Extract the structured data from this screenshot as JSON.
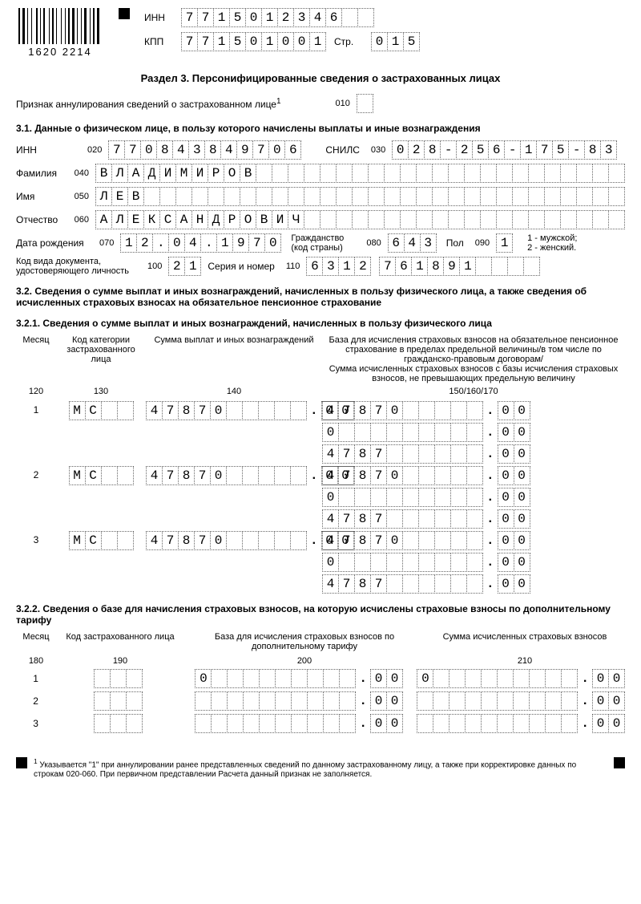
{
  "barcode_label": "1620 2214",
  "header": {
    "inn_label": "ИНН",
    "inn": [
      "7",
      "7",
      "1",
      "5",
      "0",
      "1",
      "2",
      "3",
      "4",
      "6",
      "",
      ""
    ],
    "kpp_label": "КПП",
    "kpp": [
      "7",
      "7",
      "1",
      "5",
      "0",
      "1",
      "0",
      "0",
      "1"
    ],
    "page_label": "Стр.",
    "page": [
      "0",
      "1",
      "5"
    ]
  },
  "section_title": "Раздел 3. Персонифицированные сведения о застрахованных лицах",
  "annul": {
    "label": "Признак аннулирования сведений о застрахованном лице",
    "sup": "1",
    "code": "010",
    "value": ""
  },
  "s31_title": "3.1. Данные о физическом лице, в пользу которого начислены выплаты и иные вознаграждения",
  "person": {
    "inn_label": "ИНН",
    "inn_code": "020",
    "inn": [
      "7",
      "7",
      "0",
      "8",
      "4",
      "3",
      "8",
      "4",
      "9",
      "7",
      "0",
      "6"
    ],
    "snils_label": "СНИЛС",
    "snils_code": "030",
    "snils": [
      "0",
      "2",
      "8",
      "-",
      "2",
      "5",
      "6",
      "-",
      "1",
      "7",
      "5",
      "-",
      "8",
      "3"
    ],
    "lastname_label": "Фамилия",
    "lastname_code": "040",
    "lastname": [
      "В",
      "Л",
      "А",
      "Д",
      "И",
      "М",
      "И",
      "Р",
      "О",
      "В",
      "",
      "",
      "",
      "",
      "",
      "",
      "",
      "",
      "",
      "",
      "",
      "",
      "",
      "",
      "",
      "",
      "",
      "",
      "",
      "",
      "",
      "",
      ""
    ],
    "firstname_label": "Имя",
    "firstname_code": "050",
    "firstname": [
      "Л",
      "Е",
      "В",
      "",
      "",
      "",
      "",
      "",
      "",
      "",
      "",
      "",
      "",
      "",
      "",
      "",
      "",
      "",
      "",
      "",
      "",
      "",
      "",
      "",
      "",
      "",
      "",
      "",
      "",
      "",
      "",
      "",
      ""
    ],
    "middlename_label": "Отчество",
    "middlename_code": "060",
    "middlename": [
      "А",
      "Л",
      "Е",
      "К",
      "С",
      "А",
      "Н",
      "Д",
      "Р",
      "О",
      "В",
      "И",
      "Ч",
      "",
      "",
      "",
      "",
      "",
      "",
      "",
      "",
      "",
      "",
      "",
      "",
      "",
      "",
      "",
      "",
      "",
      "",
      "",
      ""
    ],
    "dob_label": "Дата рождения",
    "dob_code": "070",
    "dob": [
      "1",
      "2",
      ".",
      "0",
      "4",
      ".",
      "1",
      "9",
      "7",
      "0"
    ],
    "citz_label": "Гражданство (код страны)",
    "citz_code": "080",
    "citz": [
      "6",
      "4",
      "3"
    ],
    "sex_label": "Пол",
    "sex_code": "090",
    "sex": [
      "1"
    ],
    "sex_note": "1 - мужской;\n2 - женский.",
    "doc_label": "Код вида документа, удостоверяющего личность",
    "doc_code": "100",
    "doc": [
      "2",
      "1"
    ],
    "docnum_label": "Серия и номер",
    "docnum_code": "110",
    "docnum_a": [
      "6",
      "3",
      "1",
      "2"
    ],
    "docnum_b": [
      "7",
      "6",
      "1",
      "8",
      "9",
      "1",
      "",
      "",
      "",
      ""
    ]
  },
  "s32_title": "3.2. Сведения о сумме выплат и иных вознаграждений, начисленных в пользу физического лица, а также сведения об исчисленных страховых взносах на обязательное пенсионное страхование",
  "s321_title": "3.2.1. Сведения о сумме выплат и иных вознаграждений, начисленных в пользу физического лица",
  "s321": {
    "h_month": "Месяц",
    "h_cat": "Код категории застрахованного лица",
    "h_sum": "Сумма выплат и иных вознаграждений",
    "h_base": "База для исчисления страховых взносов на обязательное пенсионное страхование в пределах предельной величины/в том числе по гражданско-правовым договорам/\nСумма исчисленных страховых взносов с базы исчисления страховых взносов, не превышающих предельную величину",
    "c_month": "120",
    "c_cat": "130",
    "c_sum": "140",
    "c_base": "150/160/170",
    "rows": [
      {
        "month": "1",
        "cat": [
          "М",
          "С",
          "",
          ""
        ],
        "sum_int": [
          "4",
          "7",
          "8",
          "7",
          "0",
          "",
          "",
          "",
          "",
          ""
        ],
        "sum_dec": [
          "0",
          "0"
        ],
        "lines": [
          {
            "int": [
              "4",
              "7",
              "8",
              "7",
              "0",
              "",
              "",
              "",
              "",
              ""
            ],
            "dec": [
              "0",
              "0"
            ]
          },
          {
            "int": [
              "0",
              "",
              "",
              "",
              "",
              "",
              "",
              "",
              "",
              ""
            ],
            "dec": [
              "0",
              "0"
            ]
          },
          {
            "int": [
              "4",
              "7",
              "8",
              "7",
              "",
              "",
              "",
              "",
              "",
              ""
            ],
            "dec": [
              "0",
              "0"
            ]
          }
        ]
      },
      {
        "month": "2",
        "cat": [
          "М",
          "С",
          "",
          ""
        ],
        "sum_int": [
          "4",
          "7",
          "8",
          "7",
          "0",
          "",
          "",
          "",
          "",
          ""
        ],
        "sum_dec": [
          "0",
          "0"
        ],
        "lines": [
          {
            "int": [
              "4",
              "7",
              "8",
              "7",
              "0",
              "",
              "",
              "",
              "",
              ""
            ],
            "dec": [
              "0",
              "0"
            ]
          },
          {
            "int": [
              "0",
              "",
              "",
              "",
              "",
              "",
              "",
              "",
              "",
              ""
            ],
            "dec": [
              "0",
              "0"
            ]
          },
          {
            "int": [
              "4",
              "7",
              "8",
              "7",
              "",
              "",
              "",
              "",
              "",
              ""
            ],
            "dec": [
              "0",
              "0"
            ]
          }
        ]
      },
      {
        "month": "3",
        "cat": [
          "М",
          "С",
          "",
          ""
        ],
        "sum_int": [
          "4",
          "7",
          "8",
          "7",
          "0",
          "",
          "",
          "",
          "",
          ""
        ],
        "sum_dec": [
          "0",
          "0"
        ],
        "lines": [
          {
            "int": [
              "4",
              "7",
              "8",
              "7",
              "0",
              "",
              "",
              "",
              "",
              ""
            ],
            "dec": [
              "0",
              "0"
            ]
          },
          {
            "int": [
              "0",
              "",
              "",
              "",
              "",
              "",
              "",
              "",
              "",
              ""
            ],
            "dec": [
              "0",
              "0"
            ]
          },
          {
            "int": [
              "4",
              "7",
              "8",
              "7",
              "",
              "",
              "",
              "",
              "",
              ""
            ],
            "dec": [
              "0",
              "0"
            ]
          }
        ]
      }
    ]
  },
  "s322_title": "3.2.2. Сведения о базе для начисления страховых взносов, на которую исчислены страховые взносы по дополнительному тарифу",
  "s322": {
    "h_month": "Месяц",
    "h_cat": "Код застрахованного лица",
    "h_base": "База для исчисления страховых взносов по дополнительному тарифу",
    "h_sum": "Сумма исчисленных страховых взносов",
    "c_month": "180",
    "c_cat": "190",
    "c_base": "200",
    "c_sum": "210",
    "rows": [
      {
        "month": "1",
        "cat": [
          "",
          "",
          ""
        ],
        "base_int": [
          "0",
          "",
          "",
          "",
          "",
          "",
          "",
          "",
          "",
          ""
        ],
        "base_dec": [
          "0",
          "0"
        ],
        "sum_int": [
          "0",
          "",
          "",
          "",
          "",
          "",
          "",
          "",
          "",
          ""
        ],
        "sum_dec": [
          "0",
          "0"
        ]
      },
      {
        "month": "2",
        "cat": [
          "",
          "",
          ""
        ],
        "base_int": [
          "",
          "",
          "",
          "",
          "",
          "",
          "",
          "",
          "",
          ""
        ],
        "base_dec": [
          "0",
          "0"
        ],
        "sum_int": [
          "",
          "",
          "",
          "",
          "",
          "",
          "",
          "",
          "",
          ""
        ],
        "sum_dec": [
          "0",
          "0"
        ]
      },
      {
        "month": "3",
        "cat": [
          "",
          "",
          ""
        ],
        "base_int": [
          "",
          "",
          "",
          "",
          "",
          "",
          "",
          "",
          "",
          ""
        ],
        "base_dec": [
          "0",
          "0"
        ],
        "sum_int": [
          "",
          "",
          "",
          "",
          "",
          "",
          "",
          "",
          "",
          ""
        ],
        "sum_dec": [
          "0",
          "0"
        ]
      }
    ]
  },
  "footnote": "Указывается \"1\" при аннулировании ранее представленных сведений по данному застрахованному лицу, а также при корректировке данных по строкам 020-060. При первичном представлении Расчета данный признак не заполняется."
}
